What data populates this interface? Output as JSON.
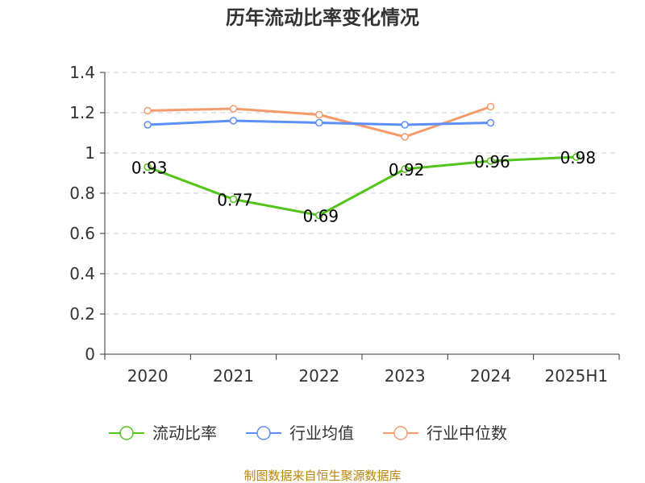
{
  "chart_data": {
    "type": "line",
    "title": "历年流动比率变化情况",
    "categories": [
      "2020",
      "2021",
      "2022",
      "2023",
      "2024",
      "2025H1"
    ],
    "ylim": [
      0,
      1.4
    ],
    "yticks": [
      0,
      0.2,
      0.4,
      0.6,
      0.8,
      1,
      1.2,
      1.4
    ],
    "ytick_labels": [
      "0",
      "0.2",
      "0.4",
      "0.6",
      "0.8",
      "1",
      "1.2",
      "1.4"
    ],
    "grid": true,
    "legend_position": "bottom",
    "series": [
      {
        "name": "流动比率",
        "color": "#52c41a",
        "values": [
          0.93,
          0.77,
          0.69,
          0.92,
          0.96,
          0.98
        ],
        "labels": [
          "0.93",
          "0.77",
          "0.69",
          "0.92",
          "0.96",
          "0.98"
        ]
      },
      {
        "name": "行业均值",
        "color": "#5b8ff9",
        "values": [
          1.14,
          1.16,
          1.15,
          1.14,
          1.15,
          null
        ]
      },
      {
        "name": "行业中位数",
        "color": "#f59a6b",
        "values": [
          1.21,
          1.22,
          1.19,
          1.08,
          1.23,
          null
        ]
      }
    ]
  },
  "source": "制图数据来自恒生聚源数据库"
}
